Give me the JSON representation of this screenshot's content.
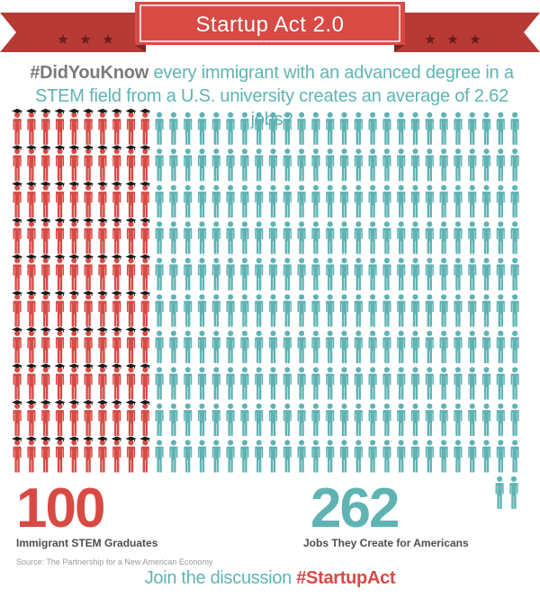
{
  "banner": {
    "title": "Startup Act 2.0",
    "star_count_per_side": 3
  },
  "headline": {
    "hashtag": "#DidYouKnow",
    "line1": " every immigrant with an advanced degree in a",
    "line2": "STEM field from a U.S. university creates an average of 2.62 jobs?"
  },
  "graduates": {
    "number": "100",
    "caption": "Immigrant STEM Graduates"
  },
  "jobs": {
    "number": "262",
    "caption": "Jobs They Create for Americans"
  },
  "source": "Source: The Partnership for a New American Economy",
  "cta": {
    "text": "Join the discussion ",
    "hashtag": "#StartupAct"
  },
  "colors": {
    "red": "#d84a44",
    "red_dark": "#b83a35",
    "teal": "#5fb3b3",
    "gray": "#7a7a7a"
  },
  "pictogram": {
    "graduate_count": 100,
    "job_count": 262,
    "graduate_icon": "graduate-person-icon",
    "job_icon": "person-icon"
  }
}
